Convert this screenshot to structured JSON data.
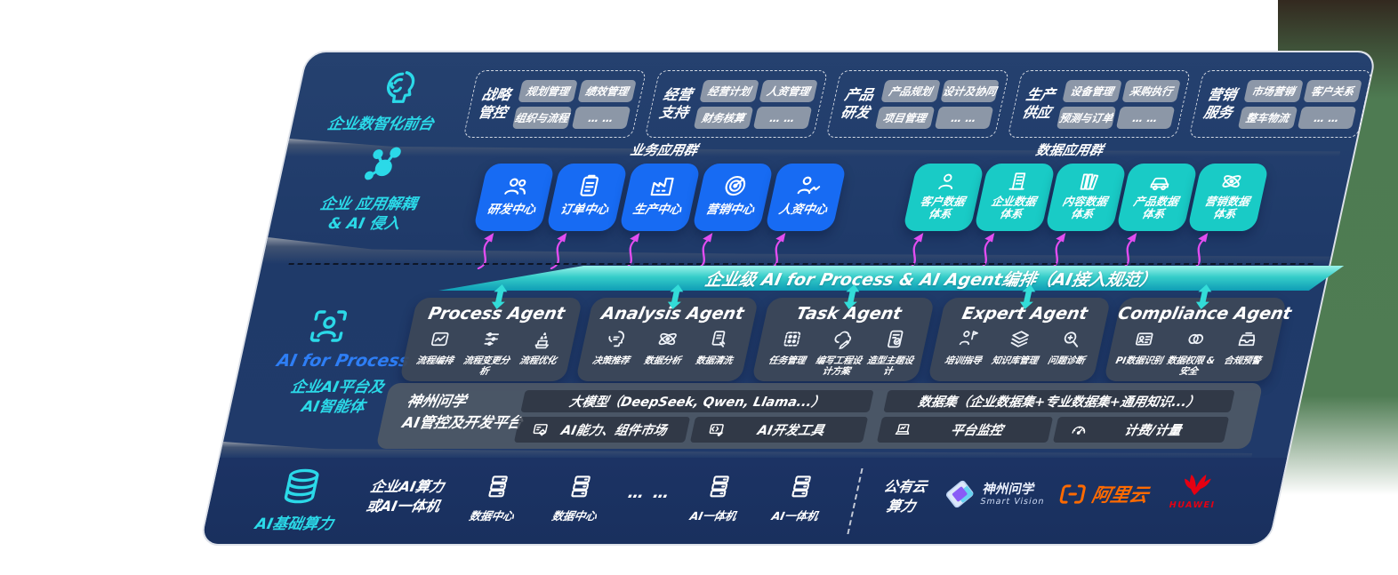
{
  "colors": {
    "panel_bg": "#203a6a",
    "accent_blue": "#176bf3",
    "accent_teal": "#19cbc6",
    "cyan_text": "#2bd9e8",
    "magenta_arrow": "#e24df0",
    "cyan_arrow": "#33dcd8",
    "banner_teal": "#2fc6c8",
    "ali_orange": "#ff6a00",
    "huawei_red": "#e60012"
  },
  "front_office": {
    "icon": "brain-circuit-icon",
    "label": "企业数智化前台",
    "groups": [
      {
        "name": [
          "战略",
          "管控"
        ],
        "items": [
          "规划管理",
          "绩效管理",
          "组织与流程",
          "… …"
        ]
      },
      {
        "name": [
          "经营",
          "支持"
        ],
        "items": [
          "经营计划",
          "人资管理",
          "财务核算",
          "… …"
        ]
      },
      {
        "name": [
          "产品",
          "研发"
        ],
        "items": [
          "产品规划",
          "设计及协同",
          "项目管理",
          "… …"
        ]
      },
      {
        "name": [
          "生产",
          "供应"
        ],
        "items": [
          "设备管理",
          "采购执行",
          "预测与订单",
          "… …"
        ]
      },
      {
        "name": [
          "营销",
          "服务"
        ],
        "items": [
          "市场营销",
          "客户关系",
          "整车物流",
          "… …"
        ]
      }
    ]
  },
  "decoupling": {
    "icon": "molecule-icon",
    "label_line1": "企业 应用解耦",
    "label_line2": "& AI 侵入",
    "business_group_title": "业务应用群",
    "data_group_title": "数据应用群",
    "business_apps": [
      {
        "icon": "team-icon",
        "label": "研发中心"
      },
      {
        "icon": "clipboard-icon",
        "label": "订单中心"
      },
      {
        "icon": "factory-icon",
        "label": "生产中心"
      },
      {
        "icon": "target-icon",
        "label": "营销中心"
      },
      {
        "icon": "person-trend-icon",
        "label": "人资中心"
      }
    ],
    "data_systems": [
      {
        "icon": "person-icon",
        "label": [
          "客户数据",
          "体系"
        ]
      },
      {
        "icon": "building-icon",
        "label": [
          "企业数据",
          "体系"
        ]
      },
      {
        "icon": "books-icon",
        "label": [
          "内容数据",
          "体系"
        ]
      },
      {
        "icon": "car-icon",
        "label": [
          "产品数据",
          "体系"
        ]
      },
      {
        "icon": "atom-icon",
        "label": [
          "营销数据",
          "体系"
        ]
      }
    ]
  },
  "banner": {
    "label": "企业级 AI for Process & AI Agent编排（AI接入规范）"
  },
  "ai_platform": {
    "icon": "scan-person-icon",
    "title": "AI for Process",
    "subtitle_line1": "企业AI平台及",
    "subtitle_line2": "AI智能体",
    "agents": [
      {
        "title": "Process Agent",
        "items": [
          {
            "icon": "chart-window-icon",
            "label": "流程编排"
          },
          {
            "icon": "flow-steps-icon",
            "label": "流程变更分析"
          },
          {
            "icon": "sparkle-box-icon",
            "label": "流程优化"
          }
        ]
      },
      {
        "title": "Analysis Agent",
        "items": [
          {
            "icon": "head-insight-icon",
            "label": "决策推荐"
          },
          {
            "icon": "atom-icon",
            "label": "数据分析"
          },
          {
            "icon": "doc-clean-icon",
            "label": "数据清洗"
          }
        ]
      },
      {
        "title": "Task Agent",
        "items": [
          {
            "icon": "task-grid-icon",
            "label": "任务管理"
          },
          {
            "icon": "cloud-pen-icon",
            "label": "编写工程设计方案"
          },
          {
            "icon": "tablet-check-icon",
            "label": "造型主题设计"
          }
        ]
      },
      {
        "title": "Expert Agent",
        "items": [
          {
            "icon": "trainer-icon",
            "label": "培训指导"
          },
          {
            "icon": "layers-icon",
            "label": "知识库管理"
          },
          {
            "icon": "diagnose-icon",
            "label": "问题诊断"
          }
        ]
      },
      {
        "title": "Compliance Agent",
        "items": [
          {
            "icon": "id-card-icon",
            "label": "PI数据识别"
          },
          {
            "icon": "rings-icon",
            "label": "数据权限 &\n安全"
          },
          {
            "icon": "alert-tray-icon",
            "label": "合规预警"
          }
        ]
      }
    ]
  },
  "dev_platform": {
    "name_line1": "神州问学",
    "name_line2": "AI管控及开发平台",
    "model_bar": "大模型（DeepSeek, Qwen, Llama...）",
    "dataset_bar": "数据集（企业数据集+专业数据集+通用知识...）",
    "cells": [
      {
        "icon": "card-gear-icon",
        "label": "AI能力、组件市场"
      },
      {
        "icon": "code-tool-icon",
        "label": "AI开发工具"
      },
      {
        "icon": "laptop-chart-icon",
        "label": "平台监控"
      },
      {
        "icon": "gauge-icon",
        "label": "计费/计量"
      }
    ]
  },
  "infra": {
    "icon": "database-icon",
    "label": "AI基础算力",
    "compute_line1": "企业AI算力",
    "compute_line2": "或AI一体机",
    "nodes": [
      {
        "icon": "server-icon",
        "label": "数据中心"
      },
      {
        "icon": "server-icon",
        "label": "数据中心"
      },
      {
        "icon": "server-icon",
        "label": "AI一体机"
      },
      {
        "icon": "server-icon",
        "label": "AI一体机"
      }
    ],
    "ellipsis": "… …",
    "public_cloud_line1": "公有云",
    "public_cloud_line2": "算力",
    "vendors": [
      {
        "icon": "smartvision-logo",
        "name": "神州问学",
        "sub": "Smart Vision"
      },
      {
        "icon": "alicloud-logo",
        "name": "阿里云"
      },
      {
        "icon": "huawei-logo",
        "name": "HUAWEI"
      }
    ]
  }
}
